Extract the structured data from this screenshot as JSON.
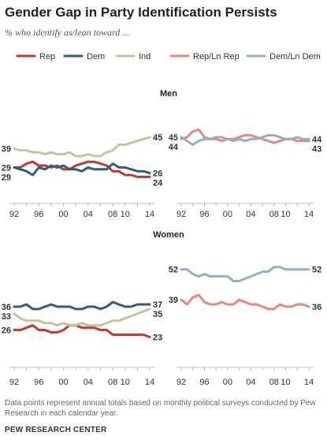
{
  "title": "Gender Gap in Party Identification Persists",
  "subtitle": "% who identify as/lean toward ...",
  "footnote": "Data points represent annual totals based on monthly political surveys conducted by Pew Research in each calendar year.",
  "source": "PEW RESEARCH CENTER",
  "colors": {
    "rep": "#c0392b",
    "dem": "#2f5d7c",
    "ind": "#c9c0a0",
    "rep_lean": "#e8857c",
    "dem_lean": "#8fb0c8"
  },
  "chart_data": [
    {
      "type": "line",
      "panel": "Men: Rep / Dem / Ind",
      "title": "Men",
      "ylim": [
        0,
        60
      ],
      "x": [
        1992,
        1993,
        1994,
        1995,
        1996,
        1997,
        1998,
        1999,
        2000,
        2001,
        2002,
        2003,
        2004,
        2005,
        2006,
        2007,
        2008,
        2009,
        2010,
        2011,
        2012,
        2013,
        2014
      ],
      "xticks": [
        "92",
        "96",
        "00",
        "04",
        "08",
        "10",
        "14"
      ],
      "series": [
        {
          "name": "Rep",
          "color_key": "rep",
          "values": [
            29,
            29,
            31,
            32,
            30,
            30,
            29,
            30,
            28,
            28,
            30,
            31,
            32,
            32,
            31,
            30,
            27,
            27,
            25,
            25,
            24,
            24,
            24
          ],
          "start_label": "29",
          "end_label": "24"
        },
        {
          "name": "Dem",
          "color_key": "dem",
          "values": [
            29,
            28,
            27,
            25,
            29,
            28,
            30,
            29,
            30,
            28,
            28,
            27,
            29,
            28,
            28,
            28,
            31,
            29,
            29,
            28,
            27,
            27,
            26
          ],
          "start_label": "29",
          "end_label": "26"
        },
        {
          "name": "Ind",
          "color_key": "ind",
          "values": [
            39,
            38,
            38,
            37,
            37,
            36,
            37,
            36,
            36,
            37,
            35,
            35,
            36,
            35,
            35,
            37,
            38,
            41,
            41,
            42,
            43,
            44,
            45
          ],
          "start_label": "39",
          "end_label": "45"
        }
      ]
    },
    {
      "type": "line",
      "panel": "Men: Rep/Ln Rep / Dem/Ln Dem",
      "ylim": [
        0,
        60
      ],
      "x": [
        1992,
        1993,
        1994,
        1995,
        1996,
        1997,
        1998,
        1999,
        2000,
        2001,
        2002,
        2003,
        2004,
        2005,
        2006,
        2007,
        2008,
        2009,
        2010,
        2011,
        2012,
        2013,
        2014
      ],
      "xticks": [
        "92",
        "96",
        "00",
        "04",
        "08",
        "10",
        "14"
      ],
      "series": [
        {
          "name": "Rep/Ln Rep",
          "color_key": "rep_lean",
          "values": [
            44,
            45,
            48,
            49,
            45,
            44,
            44,
            43,
            44,
            44,
            45,
            46,
            46,
            45,
            44,
            43,
            42,
            43,
            44,
            44,
            43,
            43,
            43
          ],
          "start_label": "44",
          "end_label": "43"
        },
        {
          "name": "Dem/Ln Dem",
          "color_key": "dem_lean",
          "values": [
            45,
            43,
            41,
            43,
            44,
            44,
            45,
            45,
            44,
            43,
            44,
            43,
            44,
            44,
            45,
            46,
            46,
            45,
            44,
            44,
            45,
            44,
            44
          ],
          "start_label": "45",
          "end_label": "44"
        }
      ]
    },
    {
      "type": "line",
      "panel": "Women: Rep / Dem / Ind",
      "title": "Women",
      "ylim": [
        0,
        60
      ],
      "x": [
        1992,
        1993,
        1994,
        1995,
        1996,
        1997,
        1998,
        1999,
        2000,
        2001,
        2002,
        2003,
        2004,
        2005,
        2006,
        2007,
        2008,
        2009,
        2010,
        2011,
        2012,
        2013,
        2014
      ],
      "xticks": [
        "92",
        "96",
        "00",
        "04",
        "08",
        "10",
        "14"
      ],
      "series": [
        {
          "name": "Rep",
          "color_key": "rep",
          "values": [
            26,
            26,
            27,
            28,
            26,
            26,
            25,
            25,
            26,
            28,
            28,
            27,
            27,
            27,
            26,
            26,
            24,
            24,
            24,
            24,
            24,
            24,
            23
          ],
          "start_label": "26",
          "end_label": "23"
        },
        {
          "name": "Dem",
          "color_key": "dem",
          "values": [
            36,
            36,
            37,
            35,
            35,
            36,
            37,
            36,
            36,
            36,
            35,
            35,
            36,
            36,
            35,
            36,
            38,
            37,
            36,
            36,
            37,
            37,
            37
          ],
          "start_label": "36",
          "end_label": "37"
        },
        {
          "name": "Ind",
          "color_key": "ind",
          "values": [
            33,
            31,
            30,
            30,
            30,
            29,
            29,
            28,
            29,
            28,
            28,
            29,
            28,
            28,
            28,
            29,
            30,
            30,
            31,
            32,
            33,
            34,
            35
          ],
          "start_label": "33",
          "end_label": "35"
        }
      ]
    },
    {
      "type": "line",
      "panel": "Women: Rep/Ln Rep / Dem/Ln Dem",
      "ylim": [
        0,
        60
      ],
      "x": [
        1992,
        1993,
        1994,
        1995,
        1996,
        1997,
        1998,
        1999,
        2000,
        2001,
        2002,
        2003,
        2004,
        2005,
        2006,
        2007,
        2008,
        2009,
        2010,
        2011,
        2012,
        2013,
        2014
      ],
      "xticks": [
        "92",
        "96",
        "00",
        "04",
        "08",
        "10",
        "14"
      ],
      "series": [
        {
          "name": "Rep/Ln Rep",
          "color_key": "rep_lean",
          "values": [
            39,
            37,
            40,
            41,
            38,
            37,
            37,
            38,
            37,
            37,
            39,
            38,
            37,
            37,
            36,
            35,
            35,
            37,
            36,
            36,
            37,
            37,
            36
          ],
          "start_label": "39",
          "end_label": "36"
        },
        {
          "name": "Dem/Ln Dem",
          "color_key": "dem_lean",
          "values": [
            52,
            52,
            50,
            49,
            50,
            49,
            49,
            49,
            49,
            47,
            47,
            48,
            49,
            50,
            51,
            51,
            53,
            53,
            52,
            52,
            52,
            52,
            52
          ],
          "start_label": "52",
          "end_label": "52"
        }
      ]
    }
  ],
  "legend": [
    {
      "label": "Rep",
      "color_key": "rep"
    },
    {
      "label": "Dem",
      "color_key": "dem"
    },
    {
      "label": "Ind",
      "color_key": "ind"
    },
    {
      "label": "Rep/Ln Rep",
      "color_key": "rep_lean"
    },
    {
      "label": "Dem/Ln Dem",
      "color_key": "dem_lean"
    }
  ]
}
